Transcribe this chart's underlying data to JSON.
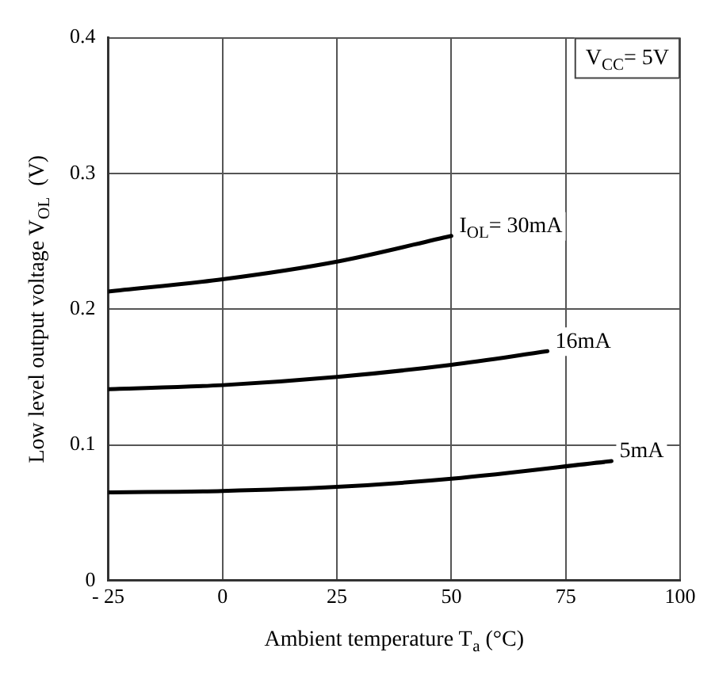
{
  "chart_data": {
    "type": "line",
    "xlabel": "Ambient temperature T$_{a}$ (°C)",
    "ylabel": "Low level output voltage V$_{OL}$  (V)",
    "annotations": [
      "V$_{CC}$= 5V"
    ],
    "xlim": [
      -25,
      100
    ],
    "xticks": [
      {
        "value": -25,
        "label": "- 25"
      },
      0,
      25,
      50,
      75,
      100
    ],
    "ylim": [
      0,
      0.4
    ],
    "yticks": [
      0,
      0.1,
      0.2,
      0.3,
      0.4
    ],
    "grid": true,
    "legend": false,
    "marker": "none",
    "line_style": "solid",
    "series": [
      {
        "name": "I$_{OL}$= 30mA",
        "color": "#000000",
        "x": [
          -25,
          0,
          25,
          50
        ],
        "values": [
          0.213,
          0.222,
          0.235,
          0.254
        ]
      },
      {
        "name": "16mA",
        "color": "#000000",
        "x": [
          -25,
          0,
          25,
          50,
          71
        ],
        "values": [
          0.141,
          0.144,
          0.15,
          0.159,
          0.169
        ]
      },
      {
        "name": "5mA",
        "color": "#000000",
        "x": [
          -25,
          0,
          25,
          50,
          85
        ],
        "values": [
          0.065,
          0.066,
          0.069,
          0.075,
          0.088
        ]
      }
    ]
  }
}
